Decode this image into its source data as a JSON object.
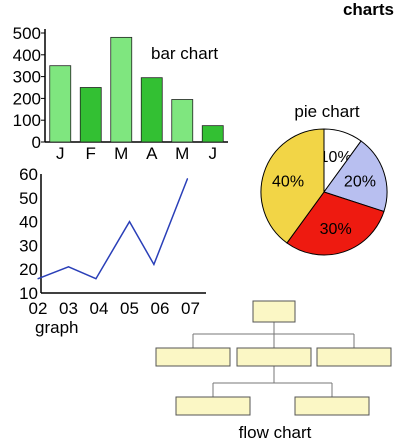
{
  "header": {
    "title": "charts"
  },
  "colors": {
    "bar_light": "#7fe67f",
    "bar_dark": "#33c033",
    "line": "#2a3fb8",
    "pie_white": "#ffffff",
    "pie_blue": "#b8bff0",
    "pie_red": "#ee1a10",
    "pie_yellow": "#f2d546",
    "flow_box": "#fbf7c5"
  },
  "chart_data": [
    {
      "type": "bar",
      "title": "bar chart",
      "categories": [
        "J",
        "F",
        "M",
        "A",
        "M",
        "J"
      ],
      "values": [
        350,
        250,
        480,
        295,
        195,
        75
      ],
      "ylim": [
        0,
        500
      ],
      "yticks": [
        0,
        100,
        200,
        300,
        400,
        500
      ],
      "bar_colors": [
        "bar_light",
        "bar_dark",
        "bar_light",
        "bar_dark",
        "bar_light",
        "bar_dark"
      ],
      "xlabel": "",
      "ylabel": ""
    },
    {
      "type": "pie",
      "title": "pie chart",
      "slices": [
        {
          "label": "10%",
          "value": 10,
          "color": "pie_white"
        },
        {
          "label": "20%",
          "value": 20,
          "color": "pie_blue"
        },
        {
          "label": "30%",
          "value": 30,
          "color": "pie_red"
        },
        {
          "label": "40%",
          "value": 40,
          "color": "pie_yellow"
        }
      ]
    },
    {
      "type": "line",
      "title": "graph",
      "x": [
        "02",
        "03",
        "04",
        "05",
        "06",
        "07"
      ],
      "values": [
        16,
        21,
        16,
        40,
        22,
        58
      ],
      "x_positions": [
        2,
        3,
        3.9,
        5,
        5.8,
        6.9
      ],
      "ylim": [
        10,
        60
      ],
      "yticks": [
        10,
        20,
        30,
        40,
        50,
        60
      ],
      "xlabel": "",
      "ylabel": ""
    },
    {
      "type": "diagram",
      "title": "flow chart",
      "nodes": [
        {
          "id": "root",
          "label": ""
        },
        {
          "id": "a",
          "label": "",
          "parent": "root"
        },
        {
          "id": "b",
          "label": "",
          "parent": "root"
        },
        {
          "id": "c",
          "label": "",
          "parent": "root"
        },
        {
          "id": "d",
          "label": "",
          "parent": "b"
        },
        {
          "id": "e",
          "label": "",
          "parent": "b"
        }
      ]
    }
  ]
}
